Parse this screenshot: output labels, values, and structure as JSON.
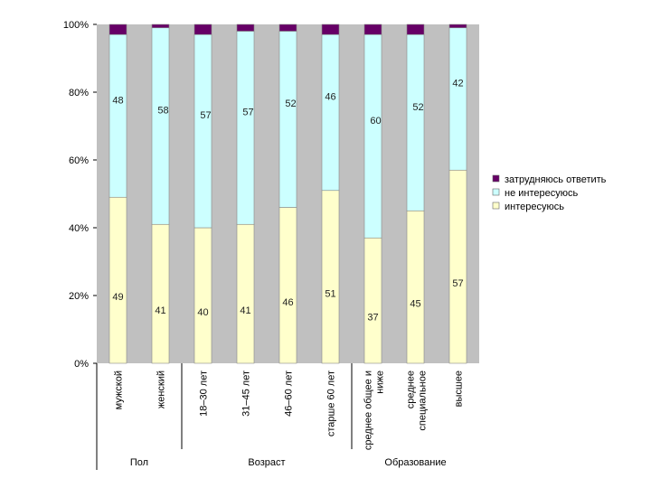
{
  "chart_data": {
    "type": "bar",
    "stacked": "percent",
    "categories": [
      "мужской",
      "женский",
      "18–30 лет",
      "31–45 лет",
      "46–60 лет",
      "старше 60 лет",
      "среднее общее и ниже",
      "среднее специальное",
      "высшее"
    ],
    "category_lines": [
      [
        "мужской"
      ],
      [
        "женский"
      ],
      [
        "18–30 лет"
      ],
      [
        "31–45 лет"
      ],
      [
        "46–60 лет"
      ],
      [
        "старше 60 лет"
      ],
      [
        "среднее общее и",
        "ниже"
      ],
      [
        "среднее",
        "специальное"
      ],
      [
        "высшее"
      ]
    ],
    "groups": [
      {
        "label": "Пол",
        "start": 0,
        "end": 1
      },
      {
        "label": "Возраст",
        "start": 2,
        "end": 5
      },
      {
        "label": "Образование",
        "start": 6,
        "end": 8
      }
    ],
    "series": [
      {
        "name": "интересуюсь",
        "color": "#ffffcc",
        "values": [
          49,
          41,
          40,
          41,
          46,
          51,
          37,
          45,
          57
        ]
      },
      {
        "name": "не интересуюсь",
        "color": "#ccffff",
        "values": [
          48,
          58,
          57,
          57,
          52,
          46,
          60,
          52,
          42
        ]
      },
      {
        "name": "затрудняюсь ответить",
        "color": "#660066",
        "values": [
          3,
          1,
          3,
          2,
          2,
          3,
          3,
          3,
          1
        ]
      }
    ],
    "legend_order": [
      "затрудняюсь ответить",
      "не интересуюсь",
      "интересуюсь"
    ],
    "yticks": [
      "0%",
      "20%",
      "40%",
      "60%",
      "80%",
      "100%"
    ],
    "ylim": [
      0,
      100
    ],
    "legend_position": "right",
    "plot_background": "#c0c0c0"
  }
}
